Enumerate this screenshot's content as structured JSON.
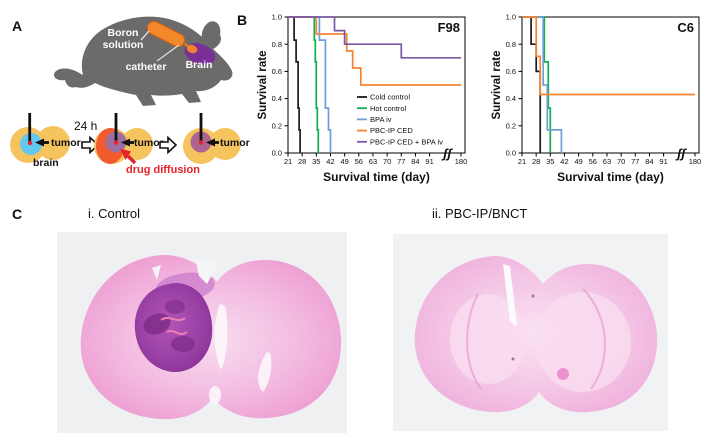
{
  "panels": {
    "a": {
      "label": "A",
      "rat_diagram": {
        "boron_label_line1": "Boron",
        "boron_label_line2": "solution",
        "catheter_label": "catheter",
        "brain_label": "Brain"
      },
      "schematic": {
        "time_label": "24 h",
        "tumor_label": "tumor",
        "brain_label": "brain",
        "diffusion_label": "drug diffusion"
      }
    },
    "b": {
      "label": "B"
    },
    "c": {
      "label": "C",
      "left_image_title": "i. Control",
      "right_image_title": "ii. PBC-IP/BNCT"
    }
  },
  "colors": {
    "rat_body": "#6B6B6B",
    "capsule_orange": "#F5872B",
    "brain_purple": "#7A2F96",
    "icon_yellow": "#F6C45F",
    "icon_blue": "#62C8F0",
    "diffusion_orange_red": "#F15B2D",
    "tumor_gray_purple": "#9C6FA0",
    "tumor_mauve": "#AC6590",
    "red_accent": "#E8222A",
    "histology_pink": "#F3BCE2",
    "histology_tumor_purple": "#9A3FA5",
    "histology_background": "#EEF0F1"
  },
  "chart_data": [
    {
      "type": "line",
      "subtype": "kaplan_meier_step",
      "title": "F98",
      "xlabel": "Survival time (day)",
      "ylabel": "Survival rate",
      "xticks": [
        21,
        28,
        35,
        42,
        49,
        56,
        63,
        70,
        77,
        84,
        91,
        180
      ],
      "yticks": [
        0,
        0.2,
        0.4,
        0.6,
        0.8,
        1
      ],
      "ylim": [
        0,
        1
      ],
      "xlim": [
        21,
        180
      ],
      "axis_break_between": [
        91,
        180
      ],
      "grid": false,
      "legend": true,
      "legend_position": "inside-lower-right",
      "series": [
        {
          "name": "Cold control",
          "color": "#1A1A1A",
          "points": [
            [
              21,
              1.0
            ],
            [
              24,
              0.83
            ],
            [
              25,
              0.67
            ],
            [
              26,
              0.33
            ],
            [
              26.5,
              0.17
            ],
            [
              27,
              0
            ]
          ]
        },
        {
          "name": "Hot control",
          "color": "#0FAF4E",
          "points": [
            [
              21,
              1.0
            ],
            [
              34,
              0.83
            ],
            [
              34.5,
              0.67
            ],
            [
              35,
              0.33
            ],
            [
              35.5,
              0.17
            ],
            [
              36,
              0
            ]
          ]
        },
        {
          "name": "BPA iv",
          "color": "#6F9ED6",
          "points": [
            [
              21,
              1.0
            ],
            [
              36.5,
              0.83
            ],
            [
              39.5,
              0.33
            ],
            [
              41,
              0.17
            ],
            [
              42,
              0
            ]
          ]
        },
        {
          "name": "PBC-IP CED",
          "color": "#F58432",
          "points": [
            [
              21,
              1.0
            ],
            [
              35,
              0.875
            ],
            [
              50,
              0.75
            ],
            [
              53,
              0.625
            ],
            [
              57,
              0.5
            ],
            [
              180,
              0.5
            ]
          ]
        },
        {
          "name": "PBC-IP CED + BPA iv",
          "color": "#7A57A5",
          "points": [
            [
              21,
              1.0
            ],
            [
              44,
              0.9
            ],
            [
              49,
              0.8
            ],
            [
              77,
              0.7
            ],
            [
              180,
              0.7
            ]
          ]
        }
      ]
    },
    {
      "type": "line",
      "subtype": "kaplan_meier_step",
      "title": "C6",
      "xlabel": "Survival time (day)",
      "ylabel": "Survival rate",
      "xticks": [
        21,
        28,
        35,
        42,
        49,
        56,
        63,
        70,
        77,
        84,
        91,
        180
      ],
      "yticks": [
        0,
        0.2,
        0.4,
        0.6,
        0.8,
        1
      ],
      "ylim": [
        0,
        1
      ],
      "xlim": [
        21,
        180
      ],
      "axis_break_between": [
        91,
        180
      ],
      "grid": false,
      "legend": false,
      "series": [
        {
          "name": "Cold control",
          "color": "#1A1A1A",
          "points": [
            [
              21,
              1.0
            ],
            [
              25.5,
              0.8
            ],
            [
              28,
              0.6
            ],
            [
              30,
              0
            ]
          ]
        },
        {
          "name": "Hot control",
          "color": "#0FAF4E",
          "points": [
            [
              21,
              1.0
            ],
            [
              32,
              0.67
            ],
            [
              34,
              0.33
            ],
            [
              35,
              0
            ]
          ]
        },
        {
          "name": "BPA iv",
          "color": "#6F9ED6",
          "points": [
            [
              21,
              1.0
            ],
            [
              31.5,
              0.5
            ],
            [
              33.5,
              0.17
            ],
            [
              40.5,
              0
            ]
          ]
        },
        {
          "name": "PBC-IP CED",
          "color": "#F58432",
          "points": [
            [
              21,
              1.0
            ],
            [
              28,
              0.71
            ],
            [
              30,
              0.43
            ],
            [
              180,
              0.43
            ]
          ]
        }
      ]
    }
  ]
}
